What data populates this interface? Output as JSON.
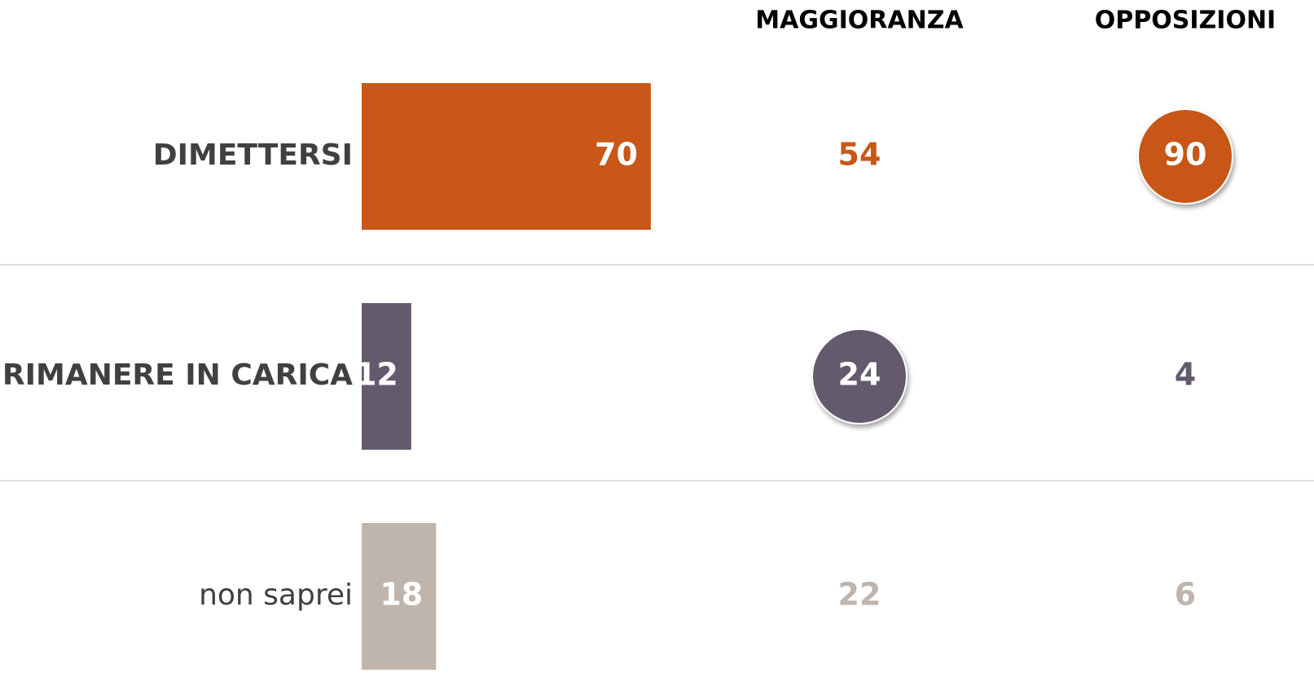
{
  "chart_data": {
    "type": "bar",
    "categories": [
      "DIMETTERSI",
      "RIMANERE IN CARICA",
      "non saprei"
    ],
    "bold": [
      true,
      true,
      false
    ],
    "values": [
      70,
      12,
      18
    ],
    "colors": [
      "#c85718",
      "#645a6e",
      "#bfb5ac"
    ],
    "columns": [
      {
        "name": "MAGGIORANZA",
        "values": [
          54,
          24,
          22
        ],
        "highlight": 1
      },
      {
        "name": "OPPOSIZIONI",
        "values": [
          90,
          4,
          6
        ],
        "highlight": 0
      }
    ]
  }
}
